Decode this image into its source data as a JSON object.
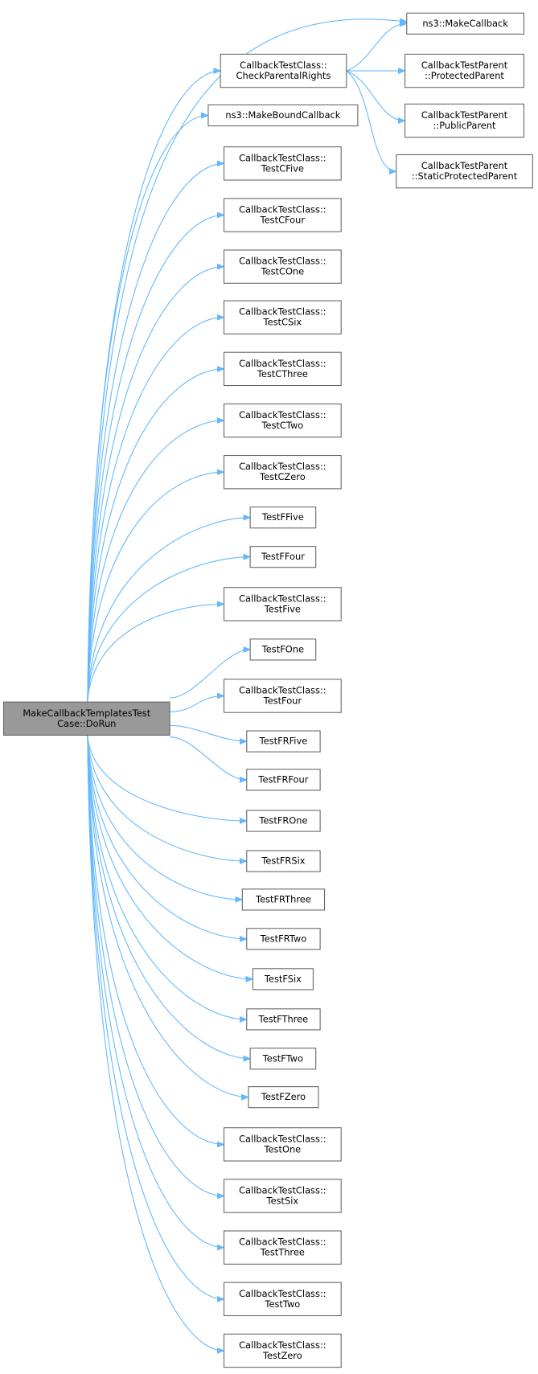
{
  "nodes": [
    {
      "label": [
        "MakeCallbackTemplatesTest",
        "Case::DoRun"
      ]
    },
    {
      "label": [
        "CallbackTestClass::",
        "CheckParentalRights"
      ]
    },
    {
      "label": [
        "ns3::MakeCallback"
      ]
    },
    {
      "label": [
        "CallbackTestParent",
        "::ProtectedParent"
      ]
    },
    {
      "label": [
        "CallbackTestParent",
        "::PublicParent"
      ]
    },
    {
      "label": [
        "CallbackTestParent",
        "::StaticProtectedParent"
      ]
    },
    {
      "label": [
        "ns3::MakeBoundCallback"
      ]
    },
    {
      "label": [
        "CallbackTestClass::",
        "TestCFive"
      ]
    },
    {
      "label": [
        "CallbackTestClass::",
        "TestCFour"
      ]
    },
    {
      "label": [
        "CallbackTestClass::",
        "TestCOne"
      ]
    },
    {
      "label": [
        "CallbackTestClass::",
        "TestCSix"
      ]
    },
    {
      "label": [
        "CallbackTestClass::",
        "TestCThree"
      ]
    },
    {
      "label": [
        "CallbackTestClass::",
        "TestCTwo"
      ]
    },
    {
      "label": [
        "CallbackTestClass::",
        "TestCZero"
      ]
    },
    {
      "label": [
        "TestFFive"
      ]
    },
    {
      "label": [
        "TestFFour"
      ]
    },
    {
      "label": [
        "CallbackTestClass::",
        "TestFive"
      ]
    },
    {
      "label": [
        "TestFOne"
      ]
    },
    {
      "label": [
        "CallbackTestClass::",
        "TestFour"
      ]
    },
    {
      "label": [
        "TestFRFive"
      ]
    },
    {
      "label": [
        "TestFRFour"
      ]
    },
    {
      "label": [
        "TestFROne"
      ]
    },
    {
      "label": [
        "TestFRSix"
      ]
    },
    {
      "label": [
        "TestFRThree"
      ]
    },
    {
      "label": [
        "TestFRTwo"
      ]
    },
    {
      "label": [
        "TestFSix"
      ]
    },
    {
      "label": [
        "TestFThree"
      ]
    },
    {
      "label": [
        "TestFTwo"
      ]
    },
    {
      "label": [
        "TestFZero"
      ]
    },
    {
      "label": [
        "CallbackTestClass::",
        "TestOne"
      ]
    },
    {
      "label": [
        "CallbackTestClass::",
        "TestSix"
      ]
    },
    {
      "label": [
        "CallbackTestClass::",
        "TestThree"
      ]
    },
    {
      "label": [
        "CallbackTestClass::",
        "TestTwo"
      ]
    },
    {
      "label": [
        "CallbackTestClass::",
        "TestZero"
      ]
    }
  ],
  "edges": [
    [
      0,
      1
    ],
    [
      0,
      2
    ],
    [
      0,
      6
    ],
    [
      0,
      7
    ],
    [
      0,
      8
    ],
    [
      0,
      9
    ],
    [
      0,
      10
    ],
    [
      0,
      11
    ],
    [
      0,
      12
    ],
    [
      0,
      13
    ],
    [
      0,
      14
    ],
    [
      0,
      15
    ],
    [
      0,
      16
    ],
    [
      0,
      17
    ],
    [
      0,
      18
    ],
    [
      0,
      19
    ],
    [
      0,
      20
    ],
    [
      0,
      21
    ],
    [
      0,
      22
    ],
    [
      0,
      23
    ],
    [
      0,
      24
    ],
    [
      0,
      25
    ],
    [
      0,
      26
    ],
    [
      0,
      27
    ],
    [
      0,
      28
    ],
    [
      0,
      29
    ],
    [
      0,
      30
    ],
    [
      0,
      31
    ],
    [
      0,
      32
    ],
    [
      0,
      33
    ],
    [
      1,
      2
    ],
    [
      1,
      3
    ],
    [
      1,
      4
    ],
    [
      1,
      5
    ]
  ]
}
